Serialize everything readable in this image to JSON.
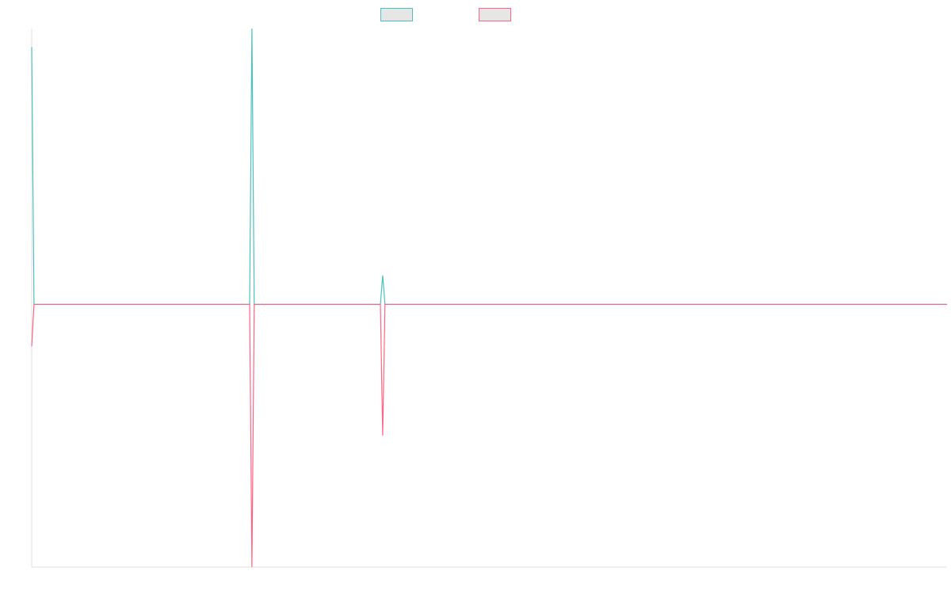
{
  "chart_data": {
    "type": "line",
    "title": "",
    "xlabel": "",
    "ylabel": "",
    "x_count": 400,
    "ylim": [
      -1,
      1.05
    ],
    "grid": false,
    "legend": "top-center",
    "series": [
      {
        "name": "",
        "color": "#4bc0c0",
        "legend_fill": "#e6e6e6",
        "points": [
          [
            0,
            0.98
          ],
          [
            1,
            0
          ],
          [
            95,
            0
          ],
          [
            96,
            1.05
          ],
          [
            97,
            0
          ],
          [
            152,
            0
          ],
          [
            153,
            0.11
          ],
          [
            154,
            0
          ],
          [
            399,
            0
          ]
        ]
      },
      {
        "name": "",
        "color": "#ff6384",
        "legend_fill": "#e6e6e6",
        "points": [
          [
            0,
            -0.16
          ],
          [
            1,
            0
          ],
          [
            95,
            0
          ],
          [
            96,
            -1.0
          ],
          [
            97,
            0
          ],
          [
            152,
            0
          ],
          [
            153,
            -0.5
          ],
          [
            154,
            0
          ],
          [
            399,
            0
          ]
        ]
      }
    ]
  }
}
